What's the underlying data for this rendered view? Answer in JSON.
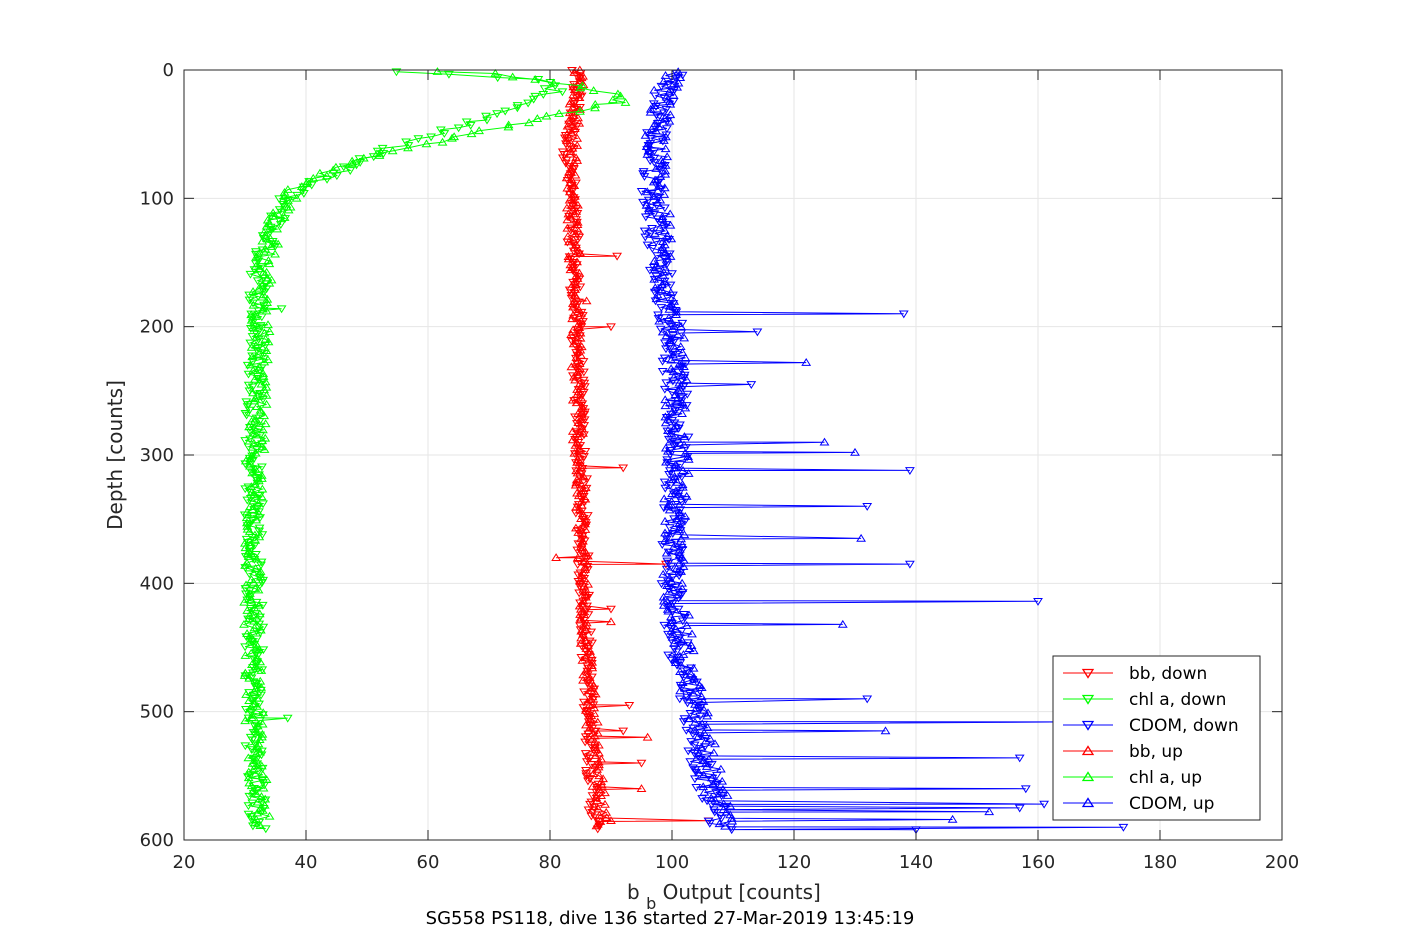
{
  "chart_data": {
    "type": "scatter",
    "title": "",
    "xlabel_main": "b",
    "xlabel_sub": "b",
    "xlabel_rest": " Output [counts]",
    "ylabel": "Depth [counts]",
    "caption": "SG558 PS118, dive 136 started 27-Mar-2019 13:45:19",
    "xlim": [
      20,
      200
    ],
    "ylim": [
      0,
      600
    ],
    "y_reversed": true,
    "grid": true,
    "legend_position": "bottom-right",
    "x_ticks": [
      "20",
      "40",
      "60",
      "80",
      "100",
      "120",
      "140",
      "160",
      "180",
      "200"
    ],
    "y_ticks": [
      "0",
      "100",
      "200",
      "300",
      "400",
      "500",
      "600"
    ],
    "series": [
      {
        "name": "bb, down",
        "color": "#ff0000",
        "marker": "triangle-down",
        "profile": [
          [
            0,
            84
          ],
          [
            20,
            84.5
          ],
          [
            60,
            83
          ],
          [
            100,
            83.5
          ],
          [
            150,
            84
          ],
          [
            200,
            84.5
          ],
          [
            300,
            85
          ],
          [
            400,
            85.5
          ],
          [
            500,
            86.5
          ],
          [
            560,
            87
          ],
          [
            592,
            87.5
          ]
        ],
        "spikes": [
          [
            145,
            91
          ],
          [
            200,
            90
          ],
          [
            310,
            92
          ],
          [
            385,
            99
          ],
          [
            420,
            90
          ],
          [
            495,
            93
          ],
          [
            515,
            92
          ],
          [
            540,
            95
          ],
          [
            585,
            106
          ]
        ]
      },
      {
        "name": "chl a, down",
        "color": "#00ff00",
        "marker": "triangle-down",
        "profile": [
          [
            1,
            56
          ],
          [
            3,
            63
          ],
          [
            5,
            70
          ],
          [
            8,
            78
          ],
          [
            15,
            81
          ],
          [
            25,
            77
          ],
          [
            40,
            68
          ],
          [
            55,
            57
          ],
          [
            70,
            49
          ],
          [
            80,
            45
          ],
          [
            90,
            40
          ],
          [
            100,
            37
          ],
          [
            130,
            34
          ],
          [
            150,
            32.5
          ],
          [
            200,
            32
          ],
          [
            300,
            31.5
          ],
          [
            400,
            31.5
          ],
          [
            500,
            31.5
          ],
          [
            592,
            32
          ]
        ],
        "spikes": [
          [
            505,
            37
          ],
          [
            186,
            36
          ]
        ]
      },
      {
        "name": "CDOM, down",
        "color": "#0000ff",
        "marker": "triangle-down",
        "profile": [
          [
            2,
            101
          ],
          [
            20,
            99
          ],
          [
            60,
            97
          ],
          [
            100,
            97
          ],
          [
            150,
            98
          ],
          [
            200,
            100
          ],
          [
            300,
            101
          ],
          [
            400,
            100
          ],
          [
            450,
            101
          ],
          [
            480,
            103
          ],
          [
            520,
            104
          ],
          [
            560,
            106
          ],
          [
            592,
            108
          ]
        ],
        "spikes": [
          [
            190,
            138
          ],
          [
            204,
            114
          ],
          [
            245,
            113
          ],
          [
            312,
            139
          ],
          [
            340,
            132
          ],
          [
            385,
            139
          ],
          [
            414,
            160
          ],
          [
            490,
            132
          ],
          [
            508,
            165
          ],
          [
            536,
            157
          ],
          [
            560,
            158
          ],
          [
            572,
            161
          ],
          [
            575,
            157
          ],
          [
            590,
            174
          ],
          [
            592,
            140
          ]
        ]
      },
      {
        "name": "bb, up",
        "color": "#ff0000",
        "marker": "triangle-up",
        "profile": [
          [
            0,
            85
          ],
          [
            30,
            84
          ],
          [
            80,
            83.5
          ],
          [
            150,
            84
          ],
          [
            250,
            84.5
          ],
          [
            350,
            85
          ],
          [
            450,
            86
          ],
          [
            520,
            87
          ],
          [
            560,
            88
          ],
          [
            590,
            88.5
          ]
        ],
        "spikes": [
          [
            180,
            86
          ],
          [
            380,
            81
          ],
          [
            430,
            90
          ],
          [
            520,
            96
          ],
          [
            560,
            95
          ],
          [
            585,
            90
          ]
        ]
      },
      {
        "name": "chl a, up",
        "color": "#00ff00",
        "marker": "triangle-up",
        "profile": [
          [
            1,
            60
          ],
          [
            3,
            70
          ],
          [
            6,
            76
          ],
          [
            10,
            82
          ],
          [
            18,
            90
          ],
          [
            25,
            91
          ],
          [
            35,
            80
          ],
          [
            45,
            72
          ],
          [
            55,
            62
          ],
          [
            65,
            52
          ],
          [
            72,
            47
          ],
          [
            80,
            43
          ],
          [
            95,
            38
          ],
          [
            120,
            35
          ],
          [
            150,
            33
          ],
          [
            250,
            32
          ],
          [
            350,
            31.5
          ],
          [
            450,
            31
          ],
          [
            550,
            32
          ],
          [
            590,
            33
          ]
        ],
        "spikes": []
      },
      {
        "name": "CDOM, up",
        "color": "#0000ff",
        "marker": "triangle-up",
        "profile": [
          [
            2,
            100
          ],
          [
            30,
            98
          ],
          [
            80,
            97
          ],
          [
            120,
            98
          ],
          [
            200,
            100
          ],
          [
            300,
            101
          ],
          [
            400,
            100
          ],
          [
            460,
            102
          ],
          [
            500,
            104
          ],
          [
            540,
            106
          ],
          [
            580,
            108
          ],
          [
            590,
            109
          ]
        ],
        "spikes": [
          [
            228,
            122
          ],
          [
            290,
            125
          ],
          [
            298,
            130
          ],
          [
            365,
            131
          ],
          [
            432,
            128
          ],
          [
            515,
            135
          ],
          [
            578,
            152
          ],
          [
            584,
            146
          ]
        ]
      }
    ]
  }
}
